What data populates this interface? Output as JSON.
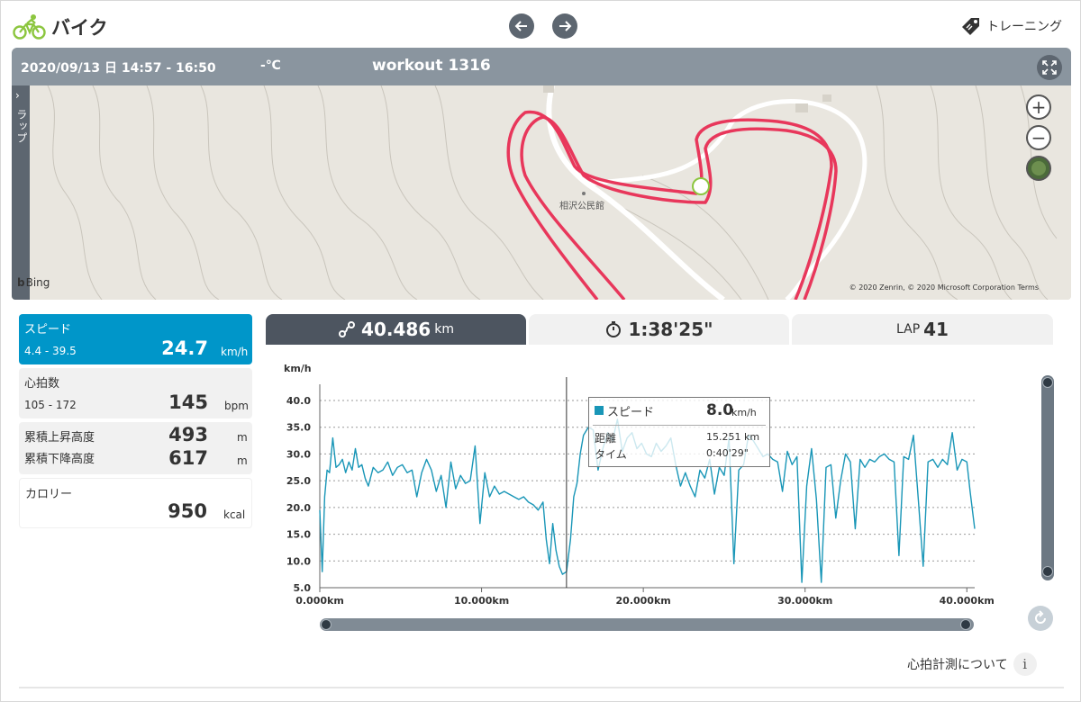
{
  "header": {
    "title": "バイク",
    "training_label": "トレーニング"
  },
  "map": {
    "date_range": "2020/09/13 日 14:57 - 16:50",
    "temperature": "-℃",
    "workout_name": "workout 1316",
    "lap_tab_label": "ラップ",
    "place_label": "相沢公民館",
    "bing_label": "Bing",
    "copyright": "© 2020 Zenrin, © 2020 Microsoft Corporation  Terms"
  },
  "stats": {
    "speed": {
      "label": "スピード",
      "range": "4.4 - 39.5",
      "value": "24.7",
      "unit": "km/h"
    },
    "heart_rate": {
      "label": "心拍数",
      "range": "105 - 172",
      "value": "145",
      "unit": "bpm"
    },
    "elevation": {
      "up_label": "累積上昇高度",
      "up_value": "493",
      "up_unit": "m",
      "down_label": "累積下降高度",
      "down_value": "617",
      "down_unit": "m"
    },
    "calories": {
      "label": "カロリー",
      "value": "950",
      "unit": "kcal"
    }
  },
  "tabs": {
    "distance": {
      "value": "40.486",
      "unit": "km"
    },
    "duration": {
      "value": "1:38'25\""
    },
    "lap": {
      "prefix": "LAP",
      "value": "41"
    }
  },
  "tooltip": {
    "series": "スピード",
    "value": "8.0",
    "unit": "km/h",
    "distance_label": "距離",
    "distance_value": "15.251 km",
    "time_label": "タイム",
    "time_value": "0:40'29\""
  },
  "footer": {
    "hr_about": "心拍計測について",
    "info_icon": "i"
  },
  "colors": {
    "accent": "#0096c9",
    "series": "#1996b7",
    "route": "#e8375b",
    "header_bar": "#8a959f",
    "dark": "#4d5560"
  },
  "chart_data": {
    "type": "line",
    "ylabel": "km/h",
    "ylim": [
      5.0,
      40.0
    ],
    "yticks": [
      "5.0",
      "10.0",
      "15.0",
      "20.0",
      "25.0",
      "30.0",
      "35.0",
      "40.0"
    ],
    "xlim": [
      0,
      40486
    ],
    "xticks": [
      "0.000km",
      "10.000km",
      "20.000km",
      "30.000km",
      "40.000km"
    ],
    "cursor_x": 15251,
    "series": [
      {
        "x": [
          0,
          150,
          300,
          450,
          600,
          800,
          1000,
          1200,
          1400,
          1600,
          1800,
          2000,
          2200,
          2400,
          2600,
          2800,
          3000,
          3300,
          3600,
          3900,
          4200,
          4500,
          4800,
          5100,
          5400,
          5700,
          6000,
          6300,
          6600,
          6900,
          7200,
          7500,
          7800,
          8100,
          8400,
          8700,
          9000,
          9300,
          9600,
          9900,
          10200,
          10500,
          10800,
          11100,
          11400,
          11700,
          12000,
          12300,
          12600,
          12900,
          13200,
          13500,
          13800,
          14000,
          14200,
          14400,
          14600,
          14800,
          15000,
          15251,
          15500,
          15700,
          15900,
          16100,
          16300,
          16600,
          16900,
          17200,
          17500,
          17800,
          18100,
          18400,
          18700,
          19000,
          19300,
          19600,
          19900,
          20200,
          20500,
          20800,
          21100,
          21400,
          21700,
          22000,
          22300,
          22600,
          22900,
          23200,
          23500,
          23800,
          24100,
          24400,
          24700,
          25000,
          25300,
          25600,
          25900,
          26200,
          26500,
          26800,
          27100,
          27400,
          27700,
          28000,
          28300,
          28600,
          28900,
          29200,
          29500,
          29800,
          30100,
          30400,
          30700,
          31000,
          31300,
          31600,
          31900,
          32200,
          32500,
          32800,
          33100,
          33400,
          33700,
          34000,
          34300,
          34600,
          34900,
          35200,
          35500,
          35800,
          36100,
          36400,
          36700,
          37000,
          37300,
          37600,
          37900,
          38200,
          38500,
          38800,
          39100,
          39400,
          39700,
          40000,
          40200,
          40486
        ],
        "values": [
          19.5,
          8.0,
          22.0,
          27.0,
          26.5,
          33.0,
          27.5,
          28.0,
          29.0,
          26.5,
          28.5,
          27.0,
          31.0,
          27.5,
          28.0,
          25.5,
          24.0,
          27.5,
          26.5,
          27.0,
          28.5,
          26.0,
          27.5,
          28.0,
          26.5,
          27.0,
          22.0,
          26.5,
          29.0,
          27.0,
          23.0,
          26.0,
          20.0,
          28.5,
          23.5,
          26.0,
          24.5,
          25.0,
          31.5,
          17.0,
          26.5,
          22.0,
          24.0,
          22.5,
          23.0,
          22.5,
          22.0,
          21.5,
          22.0,
          21.0,
          20.5,
          19.5,
          21.0,
          14.0,
          9.5,
          17.0,
          12.0,
          9.0,
          7.5,
          8.0,
          14.0,
          22.0,
          24.5,
          30.0,
          33.5,
          35.0,
          34.5,
          27.0,
          31.0,
          34.0,
          32.5,
          36.5,
          30.5,
          33.0,
          34.0,
          31.0,
          32.0,
          30.0,
          29.5,
          32.0,
          30.5,
          31.5,
          33.0,
          28.0,
          24.0,
          26.5,
          24.0,
          22.0,
          27.0,
          25.5,
          29.0,
          22.5,
          27.5,
          26.0,
          33.0,
          9.5,
          27.0,
          28.0,
          33.5,
          32.5,
          31.0,
          29.5,
          30.0,
          29.0,
          28.5,
          23.0,
          30.5,
          28.0,
          29.5,
          6.0,
          24.0,
          31.0,
          21.5,
          6.0,
          27.5,
          28.0,
          18.0,
          25.0,
          30.0,
          28.5,
          16.0,
          29.0,
          27.5,
          29.0,
          28.5,
          29.5,
          30.0,
          29.0,
          28.5,
          11.0,
          29.5,
          29.0,
          33.5,
          21.5,
          9.0,
          28.5,
          29.0,
          27.5,
          29.0,
          28.0,
          34.0,
          27.0,
          29.0,
          28.5,
          23.0,
          16.0
        ]
      }
    ]
  }
}
